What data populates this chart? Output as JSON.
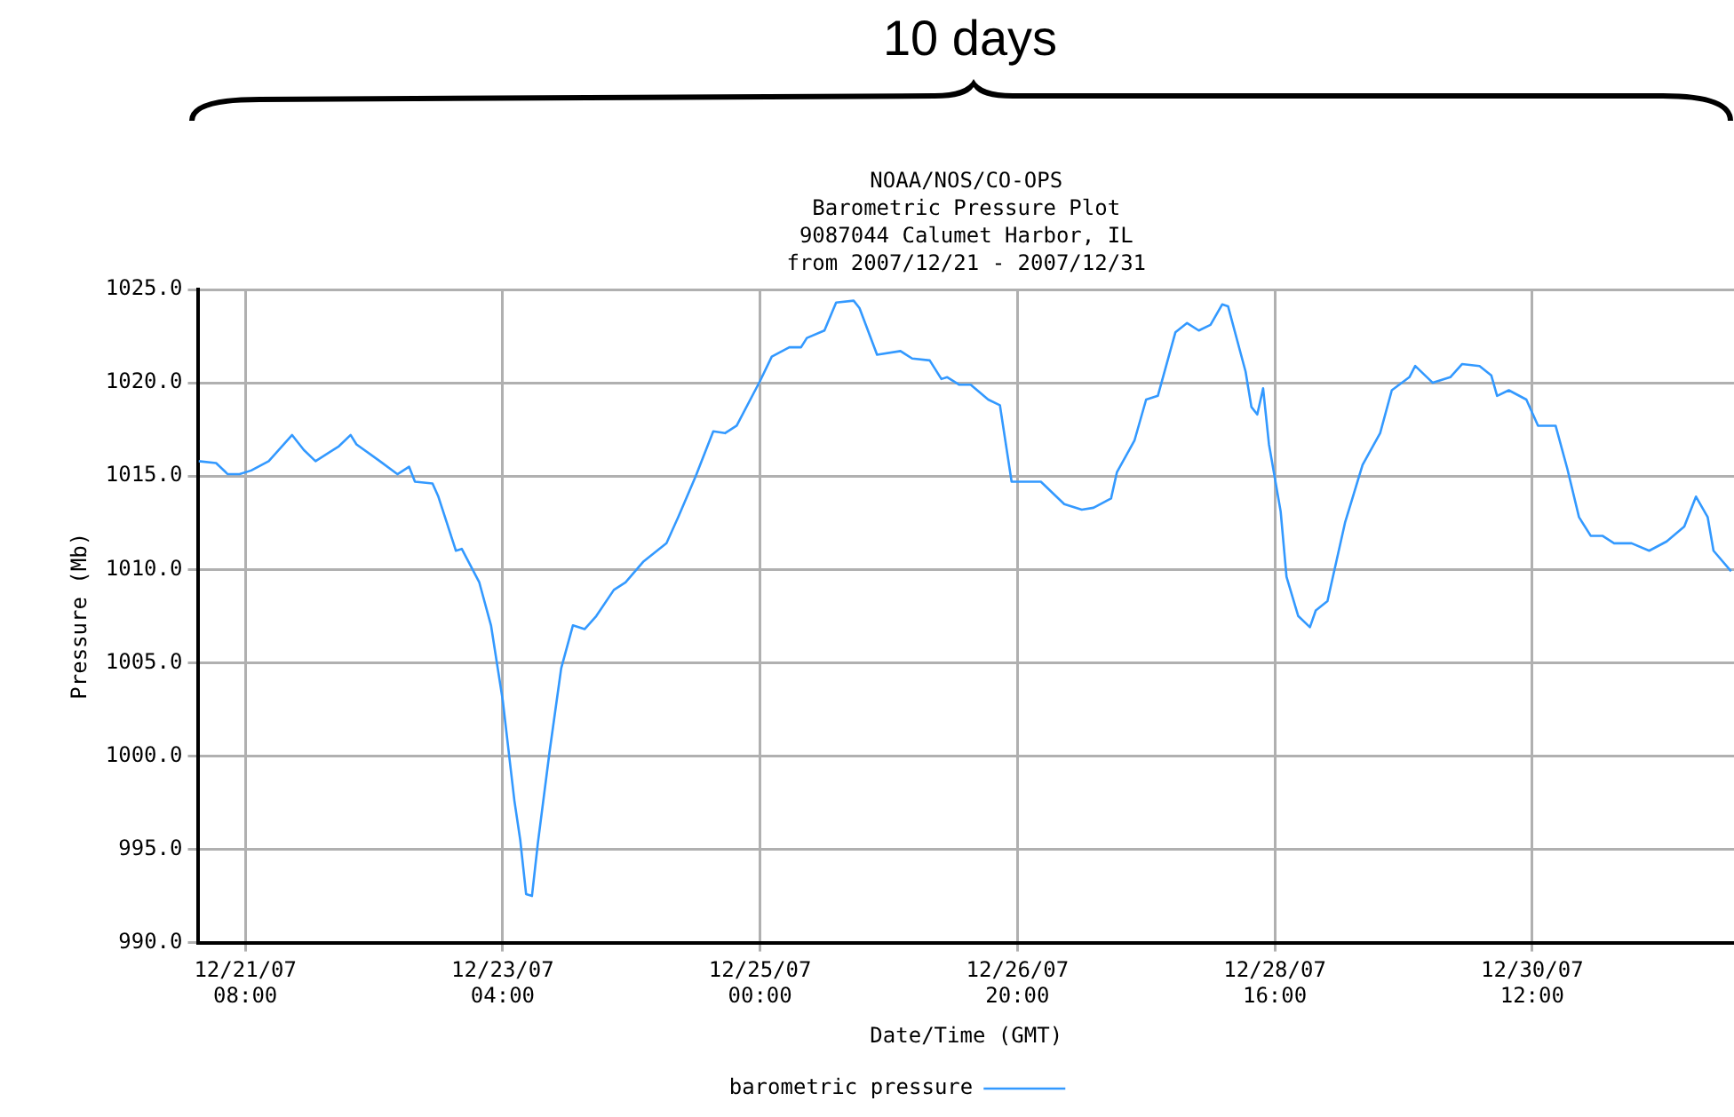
{
  "chart_data": {
    "type": "line",
    "title": "NOAA/NOS/CO-OPS\nBarometric Pressure Plot\n9087044 Calumet Harbor, IL\nfrom 2007/12/21 - 2007/12/31",
    "xlabel": "Date/Time (GMT)",
    "ylabel": "Pressure (Mb)",
    "annotations": [
      "10 days"
    ],
    "x": [
      "2007-12-21T00:00",
      "2007-12-21T03:00",
      "2007-12-21T05:00",
      "2007-12-21T07:00",
      "2007-12-21T09:00",
      "2007-12-21T12:00",
      "2007-12-21T16:00",
      "2007-12-21T18:00",
      "2007-12-21T20:00",
      "2007-12-22T00:00",
      "2007-12-22T02:00",
      "2007-12-22T03:00",
      "2007-12-22T07:00",
      "2007-12-22T10:00",
      "2007-12-22T12:00",
      "2007-12-22T13:00",
      "2007-12-22T16:00",
      "2007-12-22T17:00",
      "2007-12-22T20:00",
      "2007-12-22T21:00",
      "2007-12-23T00:00",
      "2007-12-23T02:00",
      "2007-12-23T04:00",
      "2007-12-23T06:00",
      "2007-12-23T07:00",
      "2007-12-23T08:00",
      "2007-12-23T09:00",
      "2007-12-23T10:00",
      "2007-12-23T12:00",
      "2007-12-23T14:00",
      "2007-12-23T16:00",
      "2007-12-23T18:00",
      "2007-12-23T20:00",
      "2007-12-23T23:00",
      "2007-12-24T01:00",
      "2007-12-24T04:00",
      "2007-12-24T08:00",
      "2007-12-24T10:00",
      "2007-12-24T13:00",
      "2007-12-24T16:00",
      "2007-12-24T18:00",
      "2007-12-24T20:00",
      "2007-12-25T00:00",
      "2007-12-25T02:00",
      "2007-12-25T05:00",
      "2007-12-25T07:00",
      "2007-12-25T08:00",
      "2007-12-25T11:00",
      "2007-12-25T13:00",
      "2007-12-25T16:00",
      "2007-12-25T17:00",
      "2007-12-25T20:00",
      "2007-12-26T00:00",
      "2007-12-26T02:00",
      "2007-12-26T05:00",
      "2007-12-26T07:00",
      "2007-12-26T08:00",
      "2007-12-26T10:00",
      "2007-12-26T12:00",
      "2007-12-26T15:00",
      "2007-12-26T17:00",
      "2007-12-26T19:00",
      "2007-12-26T22:00",
      "2007-12-27T00:00",
      "2007-12-27T04:00",
      "2007-12-27T07:00",
      "2007-12-27T09:00",
      "2007-12-27T12:00",
      "2007-12-27T13:00",
      "2007-12-27T16:00",
      "2007-12-27T18:00",
      "2007-12-27T20:00",
      "2007-12-27T23:00",
      "2007-12-28T01:00",
      "2007-12-28T03:00",
      "2007-12-28T05:00",
      "2007-12-28T07:00",
      "2007-12-28T08:00",
      "2007-12-28T11:00",
      "2007-12-28T12:00",
      "2007-12-28T13:00",
      "2007-12-28T14:00",
      "2007-12-28T15:00",
      "2007-12-28T17:00",
      "2007-12-28T18:00",
      "2007-12-28T20:00",
      "2007-12-28T22:00",
      "2007-12-28T23:00",
      "2007-12-29T01:00",
      "2007-12-29T04:00",
      "2007-12-29T07:00",
      "2007-12-29T10:00",
      "2007-12-29T12:00",
      "2007-12-29T15:00",
      "2007-12-29T16:00",
      "2007-12-29T19:00",
      "2007-12-29T22:00",
      "2007-12-30T00:00",
      "2007-12-30T03:00",
      "2007-12-30T05:00",
      "2007-12-30T06:00",
      "2007-12-30T08:00",
      "2007-12-30T11:00",
      "2007-12-30T13:00",
      "2007-12-30T16:00",
      "2007-12-30T18:00",
      "2007-12-30T20:00",
      "2007-12-30T22:00",
      "2007-12-31T00:00",
      "2007-12-31T02:00",
      "2007-12-31T05:00",
      "2007-12-31T08:00",
      "2007-12-31T11:00",
      "2007-12-31T14:00",
      "2007-12-31T16:00",
      "2007-12-31T18:00",
      "2007-12-31T19:00",
      "2007-12-31T22:00"
    ],
    "series": [
      {
        "name": "barometric pressure",
        "color": "#3399ff",
        "values": [
          1015.8,
          1015.7,
          1015.1,
          1015.1,
          1015.3,
          1015.8,
          1017.2,
          1016.4,
          1015.8,
          1016.6,
          1017.2,
          1016.7,
          1015.8,
          1015.1,
          1015.5,
          1014.7,
          1014.6,
          1013.9,
          1011.0,
          1011.1,
          1009.3,
          1007.0,
          1003.0,
          997.6,
          995.5,
          992.6,
          992.5,
          995.3,
          1000.2,
          1004.7,
          1007.0,
          1006.8,
          1007.5,
          1008.9,
          1009.3,
          1010.4,
          1011.4,
          1012.8,
          1015.0,
          1017.4,
          1017.3,
          1017.7,
          1020.1,
          1021.4,
          1021.9,
          1021.9,
          1022.4,
          1022.8,
          1024.3,
          1024.4,
          1024.0,
          1021.5,
          1021.7,
          1021.3,
          1021.2,
          1020.2,
          1020.3,
          1019.9,
          1019.9,
          1019.1,
          1018.8,
          1014.7,
          1014.7,
          1014.7,
          1013.5,
          1013.2,
          1013.3,
          1013.8,
          1015.2,
          1016.9,
          1019.1,
          1019.3,
          1022.7,
          1023.2,
          1022.8,
          1023.1,
          1024.2,
          1024.1,
          1020.6,
          1018.7,
          1018.3,
          1019.7,
          1016.7,
          1013.1,
          1009.6,
          1007.5,
          1006.9,
          1007.8,
          1008.3,
          1012.5,
          1015.6,
          1017.3,
          1019.6,
          1020.3,
          1020.9,
          1020.0,
          1020.3,
          1021.0,
          1020.9,
          1020.4,
          1019.3,
          1019.6,
          1019.1,
          1017.7,
          1017.7,
          1015.4,
          1012.8,
          1011.8,
          1011.8,
          1011.4,
          1011.4,
          1011.0,
          1011.5,
          1012.3,
          1013.9,
          1012.8,
          1011.0,
          1009.9
        ]
      }
    ],
    "xlim": [
      "2007-12-21T00:00",
      "2007-12-31T22:30"
    ],
    "xticks": [
      {
        "value": "2007-12-21T08:00",
        "label": "12/21/07\n08:00"
      },
      {
        "value": "2007-12-23T04:00",
        "label": "12/23/07\n04:00"
      },
      {
        "value": "2007-12-25T00:00",
        "label": "12/25/07\n00:00"
      },
      {
        "value": "2007-12-26T20:00",
        "label": "12/26/07\n20:00"
      },
      {
        "value": "2007-12-28T16:00",
        "label": "12/28/07\n16:00"
      },
      {
        "value": "2007-12-30T12:00",
        "label": "12/30/07\n12:00"
      }
    ],
    "ylim": [
      990,
      1025
    ],
    "yticks": [
      {
        "value": 990,
        "label": "990.0"
      },
      {
        "value": 995,
        "label": "995.0"
      },
      {
        "value": 1000,
        "label": "1000.0"
      },
      {
        "value": 1005,
        "label": "1005.0"
      },
      {
        "value": 1010,
        "label": "1010.0"
      },
      {
        "value": 1015,
        "label": "1015.0"
      },
      {
        "value": 1020,
        "label": "1020.0"
      },
      {
        "value": 1025,
        "label": "1025.0"
      }
    ],
    "grid": true,
    "legend": "bottom",
    "marker": "none",
    "line_style": "solid"
  }
}
